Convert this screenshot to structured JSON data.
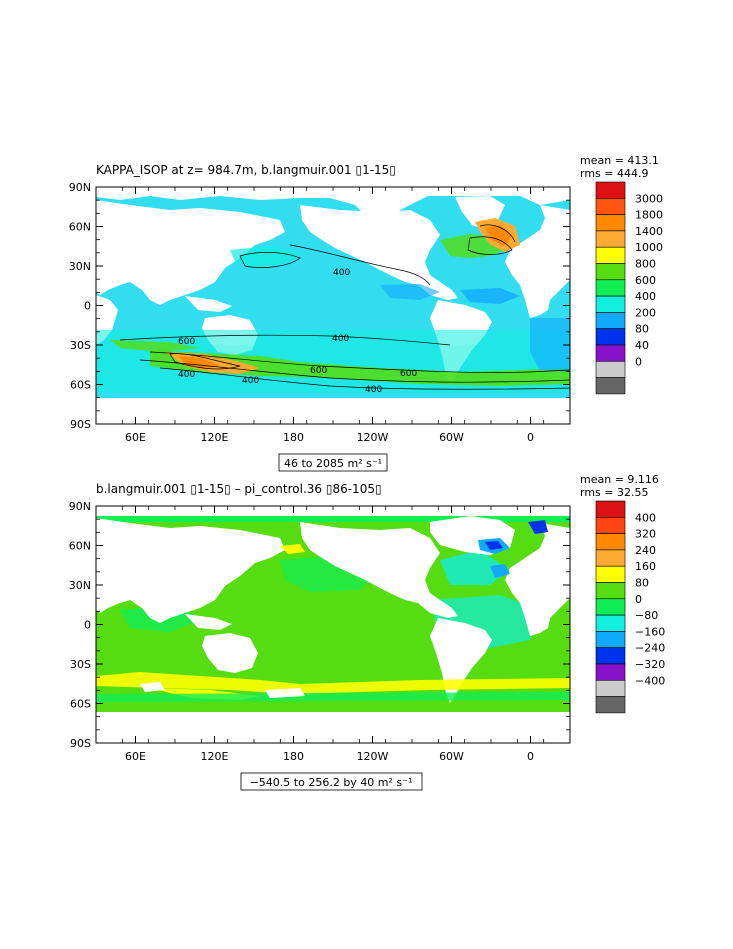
{
  "panels": [
    {
      "title": "KAPPA_ISOP at z= 984.7m, b.langmuir.001 ▯1-15▯",
      "mean_label": "mean = 413.1",
      "rms_label": "rms = 444.9",
      "range_label": "46 to 2085 m² s⁻¹",
      "colorbar": {
        "labels": [
          "3000",
          "1800",
          "1400",
          "1000",
          "800",
          "600",
          "400",
          "200",
          "80",
          "40",
          "0"
        ],
        "colors": [
          "#dd1111",
          "#ff5511",
          "#ff8800",
          "#ffaa33",
          "#ffff00",
          "#55dd11",
          "#11ee55",
          "#11eedd",
          "#11aaff",
          "#0033ee",
          "#8811cc",
          "#cccccc",
          "#666666"
        ]
      },
      "contour_labels": [
        "400",
        "400",
        "600",
        "400",
        "400",
        "600",
        "600",
        "400"
      ]
    },
    {
      "title": "b.langmuir.001 ▯1-15▯ – pi_control.36 ▯86-105▯",
      "mean_label": "mean = 9.116",
      "rms_label": "rms = 32.55",
      "range_label": "−540.5 to 256.2 by 40 m² s⁻¹",
      "colorbar": {
        "labels": [
          "400",
          "320",
          "240",
          "160",
          "80",
          "0",
          "−80",
          "−160",
          "−240",
          "−320",
          "−400"
        ],
        "colors": [
          "#dd1111",
          "#ff4411",
          "#ff8800",
          "#ffaa33",
          "#ffff00",
          "#55dd11",
          "#11ee55",
          "#11eedd",
          "#11aaff",
          "#0033ee",
          "#8811cc",
          "#cccccc",
          "#666666"
        ]
      }
    }
  ],
  "axes": {
    "lat_labels": [
      "90N",
      "60N",
      "30N",
      "0",
      "30S",
      "60S",
      "90S"
    ],
    "lon_labels": [
      "60E",
      "120E",
      "180",
      "120W",
      "60W",
      "0"
    ]
  }
}
